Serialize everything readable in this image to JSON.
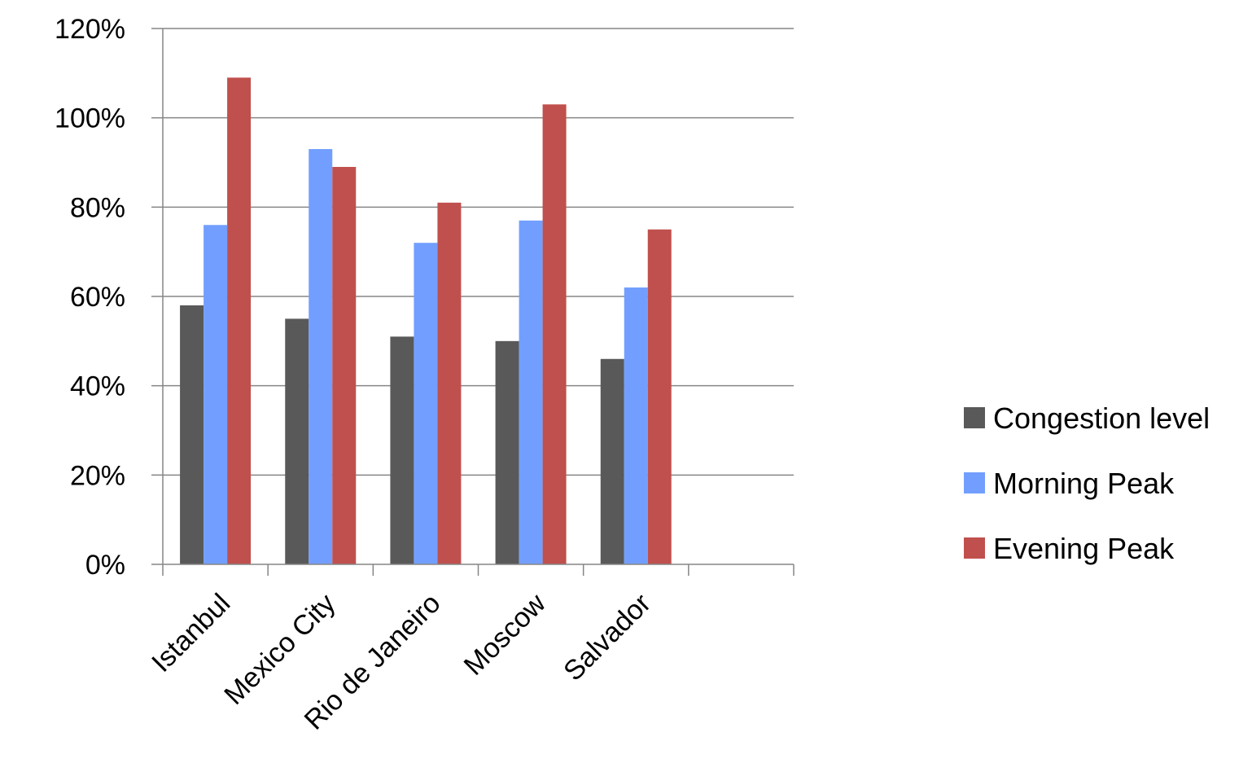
{
  "chart_data": {
    "type": "bar",
    "categories": [
      "Istanbul",
      "Mexico City",
      "Rio de Janeiro",
      "Moscow",
      "Salvador",
      ""
    ],
    "series": [
      {
        "name": "Congestion level",
        "color": "#595959",
        "values": [
          58,
          55,
          51,
          50,
          46,
          null
        ]
      },
      {
        "name": "Morning Peak",
        "color": "#729FFF",
        "values": [
          76,
          93,
          72,
          77,
          62,
          null
        ]
      },
      {
        "name": "Evening Peak",
        "color": "#C0504D",
        "values": [
          109,
          89,
          81,
          103,
          75,
          null
        ]
      }
    ],
    "y_ticks": [
      "0%",
      "20%",
      "40%",
      "60%",
      "80%",
      "100%",
      "120%"
    ],
    "ylim": [
      0,
      120
    ],
    "grid": true,
    "legend_position": "right"
  }
}
